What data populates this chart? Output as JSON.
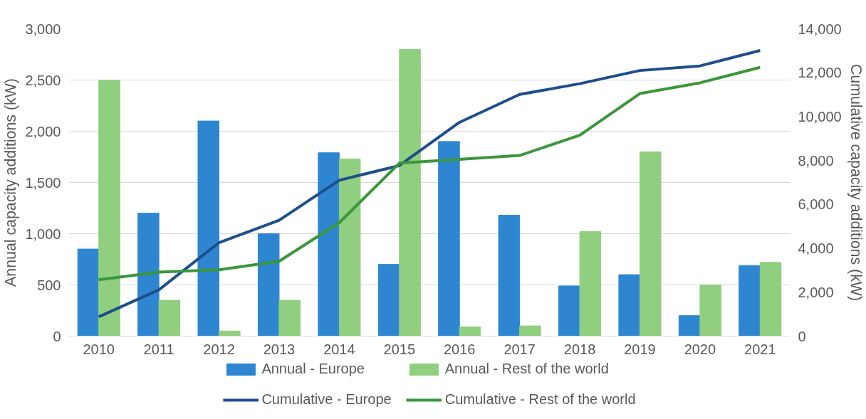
{
  "chart_data": {
    "type": "bar",
    "categories": [
      "2010",
      "2011",
      "2012",
      "2013",
      "2014",
      "2015",
      "2016",
      "2017",
      "2018",
      "2019",
      "2020",
      "2021"
    ],
    "ylabel": "Annual capacity additions (kW)",
    "y2label": "Cumulative capacity additions (kW)",
    "ylim": [
      0,
      3000
    ],
    "yticks": [
      {
        "value": 0,
        "label": "0"
      },
      {
        "value": 500,
        "label": "500"
      },
      {
        "value": 1000,
        "label": "1,000"
      },
      {
        "value": 1500,
        "label": "1,500"
      },
      {
        "value": 2000,
        "label": "2,000"
      },
      {
        "value": 2500,
        "label": "2,500"
      },
      {
        "value": 3000,
        "label": "3,000"
      }
    ],
    "y2lim": [
      0,
      14000
    ],
    "y2ticks": [
      {
        "value": 0,
        "label": "0"
      },
      {
        "value": 2000,
        "label": "2,000"
      },
      {
        "value": 4000,
        "label": "4,000"
      },
      {
        "value": 6000,
        "label": "6,000"
      },
      {
        "value": 8000,
        "label": "8,000"
      },
      {
        "value": 10000,
        "label": "10,000"
      },
      {
        "value": 12000,
        "label": "12,000"
      },
      {
        "value": 14000,
        "label": "14,000"
      }
    ],
    "grid": "y",
    "legend": "bottom",
    "series": [
      {
        "name": "Annual - Europe",
        "color": "#2e86d0",
        "values": [
          850,
          1200,
          2100,
          1000,
          1790,
          700,
          1900,
          1180,
          490,
          600,
          200,
          690
        ]
      },
      {
        "name": "Annual - Rest of the world",
        "color": "#8fcf7f",
        "values": [
          2500,
          350,
          50,
          350,
          1730,
          2800,
          90,
          100,
          1020,
          1800,
          500,
          720
        ]
      },
      {
        "name": "Cumulative - Europe",
        "type": "line",
        "axis": "y2",
        "color": "#1f4e8c",
        "values": [
          880,
          2110,
          4260,
          5280,
          7100,
          7770,
          9740,
          11010,
          11500,
          12100,
          12310,
          13010
        ]
      },
      {
        "name": "Cumulative - Rest of the world",
        "type": "line",
        "axis": "y2",
        "color": "#3c963c",
        "values": [
          2570,
          2920,
          3020,
          3410,
          5170,
          7880,
          8050,
          8230,
          9150,
          11050,
          11540,
          12240
        ]
      }
    ]
  }
}
